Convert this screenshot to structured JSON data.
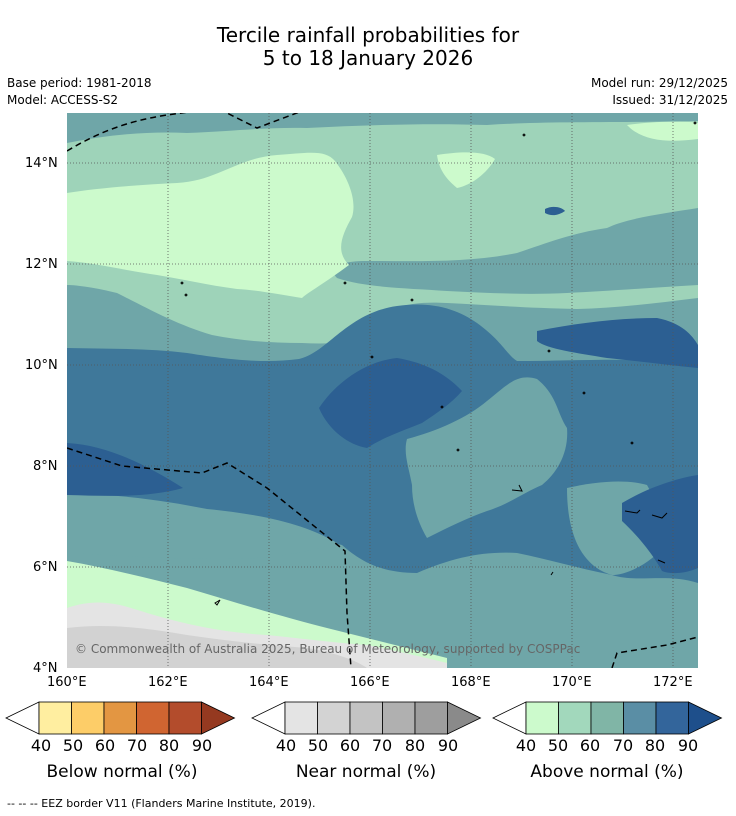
{
  "title": {
    "line1": "Tercile rainfall probabilities for",
    "line2": "5 to 18 January 2026"
  },
  "meta": {
    "base_period": "Base period: 1981-2018",
    "model": "Model: ACCESS-S2",
    "model_run": "Model run: 29/12/2025",
    "issued": "Issued: 31/12/2025"
  },
  "map": {
    "lat_ticks": [
      "14°N",
      "12°N",
      "10°N",
      "8°N",
      "6°N",
      "4°N"
    ],
    "lon_ticks": [
      "160°E",
      "162°E",
      "164°E",
      "166°E",
      "168°E",
      "170°E",
      "172°E"
    ],
    "copyright": "© Commonwealth of Australia 2025, Bureau of Meteorology, supported by COSPPac",
    "colors": {
      "above_40": "#ccfacc",
      "above_50": "#9ed3b9",
      "above_60": "#6fa6a8",
      "above_70": "#3f789a",
      "above_80": "#2c5f92",
      "near_40": "#e4e4e4",
      "near_50": "#d2d2d2",
      "eez": "#000000",
      "grid": "#555555"
    }
  },
  "legend": {
    "below": {
      "label": "Below normal (%)",
      "ticks": [
        "40",
        "50",
        "60",
        "70",
        "80",
        "90"
      ],
      "colors": [
        "#ffeea0",
        "#fdcd68",
        "#e39642",
        "#d06531",
        "#b34c2c",
        "#953920"
      ]
    },
    "near": {
      "label": "Near normal (%)",
      "ticks": [
        "40",
        "50",
        "60",
        "70",
        "80",
        "90"
      ],
      "colors": [
        "#e4e4e4",
        "#d3d3d3",
        "#c3c3c3",
        "#b0b0b0",
        "#9e9e9e",
        "#8a8a8a"
      ]
    },
    "above": {
      "label": "Above normal (%)",
      "ticks": [
        "40",
        "50",
        "60",
        "70",
        "80",
        "90"
      ],
      "colors": [
        "#ccfacc",
        "#a2d8bc",
        "#80b5a6",
        "#5a8ea5",
        "#33659b",
        "#1e4f8b"
      ]
    }
  },
  "footnote": "--  --  -- EEZ border V11 (Flanders Marine Institute, 2019)."
}
